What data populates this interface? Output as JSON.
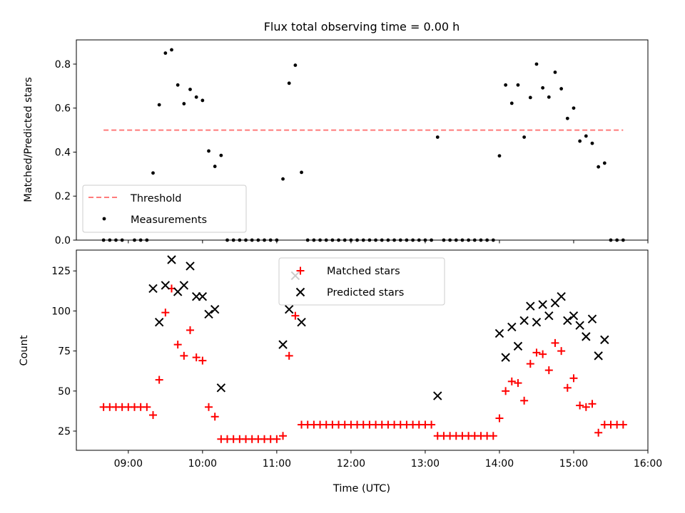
{
  "figure": {
    "title": "Flux total observing time = 0.00 h"
  },
  "chart_data": [
    {
      "type": "scatter",
      "panel": "top",
      "ylabel": "Matched/Predicted stars",
      "xlabel": "",
      "xlim": [
        "08:18",
        "16:00"
      ],
      "ylim": [
        0,
        0.91
      ],
      "yticks": [
        "0.0",
        "0.2",
        "0.4",
        "0.6",
        "0.8"
      ],
      "legend_position": "lower-left",
      "threshold": {
        "name": "Threshold",
        "value": 0.5,
        "x_range": [
          "08:40",
          "15:40"
        ],
        "color": "#ff7b7b"
      },
      "series": [
        {
          "name": "Measurements",
          "color": "#000000",
          "points": [
            [
              "08:40",
              0
            ],
            [
              "08:45",
              0
            ],
            [
              "08:50",
              0
            ],
            [
              "08:55",
              0
            ],
            [
              "09:05",
              0
            ],
            [
              "09:10",
              0
            ],
            [
              "09:15",
              0
            ],
            [
              "09:20",
              0.305
            ],
            [
              "09:25",
              0.615
            ],
            [
              "09:30",
              0.85
            ],
            [
              "09:35",
              0.865
            ],
            [
              "09:40",
              0.705
            ],
            [
              "09:45",
              0.62
            ],
            [
              "09:50",
              0.685
            ],
            [
              "09:55",
              0.65
            ],
            [
              "10:00",
              0.635
            ],
            [
              "10:05",
              0.405
            ],
            [
              "10:10",
              0.335
            ],
            [
              "10:15",
              0.385
            ],
            [
              "10:20",
              0
            ],
            [
              "10:25",
              0
            ],
            [
              "10:30",
              0
            ],
            [
              "10:35",
              0
            ],
            [
              "10:40",
              0
            ],
            [
              "10:45",
              0
            ],
            [
              "10:50",
              0
            ],
            [
              "10:55",
              0
            ],
            [
              "11:00",
              0
            ],
            [
              "11:05",
              0.278
            ],
            [
              "11:10",
              0.713
            ],
            [
              "11:15",
              0.795
            ],
            [
              "11:20",
              0.308
            ],
            [
              "11:25",
              0
            ],
            [
              "11:30",
              0
            ],
            [
              "11:35",
              0
            ],
            [
              "11:40",
              0
            ],
            [
              "11:45",
              0
            ],
            [
              "11:50",
              0
            ],
            [
              "11:55",
              0
            ],
            [
              "12:00",
              0
            ],
            [
              "12:05",
              0
            ],
            [
              "12:10",
              0
            ],
            [
              "12:15",
              0
            ],
            [
              "12:20",
              0
            ],
            [
              "12:25",
              0
            ],
            [
              "12:30",
              0
            ],
            [
              "12:35",
              0
            ],
            [
              "12:40",
              0
            ],
            [
              "12:45",
              0
            ],
            [
              "12:50",
              0
            ],
            [
              "12:55",
              0
            ],
            [
              "13:00",
              0
            ],
            [
              "13:05",
              0
            ],
            [
              "13:10",
              0.468
            ],
            [
              "13:15",
              0
            ],
            [
              "13:20",
              0
            ],
            [
              "13:25",
              0
            ],
            [
              "13:30",
              0
            ],
            [
              "13:35",
              0
            ],
            [
              "13:40",
              0
            ],
            [
              "13:45",
              0
            ],
            [
              "13:50",
              0
            ],
            [
              "13:55",
              0
            ],
            [
              "14:00",
              0.383
            ],
            [
              "14:05",
              0.705
            ],
            [
              "14:10",
              0.622
            ],
            [
              "14:15",
              0.705
            ],
            [
              "14:20",
              0.468
            ],
            [
              "14:25",
              0.648
            ],
            [
              "14:30",
              0.8
            ],
            [
              "14:35",
              0.692
            ],
            [
              "14:40",
              0.65
            ],
            [
              "14:45",
              0.763
            ],
            [
              "14:50",
              0.688
            ],
            [
              "14:55",
              0.553
            ],
            [
              "15:00",
              0.6
            ],
            [
              "15:05",
              0.45
            ],
            [
              "15:10",
              0.473
            ],
            [
              "15:15",
              0.44
            ],
            [
              "15:20",
              0.333
            ],
            [
              "15:25",
              0.35
            ],
            [
              "15:30",
              0
            ],
            [
              "15:35",
              0
            ],
            [
              "15:40",
              0
            ]
          ]
        }
      ]
    },
    {
      "type": "scatter",
      "panel": "bottom",
      "xlabel": "Time (UTC)",
      "ylabel": "Count",
      "xlim": [
        "08:18",
        "16:00"
      ],
      "ylim": [
        13,
        138
      ],
      "xticks": [
        "09:00",
        "10:00",
        "11:00",
        "12:00",
        "13:00",
        "14:00",
        "15:00",
        "16:00"
      ],
      "yticks": [
        "25",
        "50",
        "75",
        "100",
        "125"
      ],
      "legend_position": "upper-center",
      "series": [
        {
          "name": "Matched stars",
          "marker": "plus",
          "color": "#ff0000",
          "points": [
            [
              "08:40",
              40
            ],
            [
              "08:45",
              40
            ],
            [
              "08:50",
              40
            ],
            [
              "08:55",
              40
            ],
            [
              "09:00",
              40
            ],
            [
              "09:05",
              40
            ],
            [
              "09:10",
              40
            ],
            [
              "09:15",
              40
            ],
            [
              "09:20",
              35
            ],
            [
              "09:25",
              57
            ],
            [
              "09:30",
              99
            ],
            [
              "09:35",
              114
            ],
            [
              "09:40",
              79
            ],
            [
              "09:45",
              72
            ],
            [
              "09:50",
              88
            ],
            [
              "09:55",
              71
            ],
            [
              "10:00",
              69
            ],
            [
              "10:05",
              40
            ],
            [
              "10:10",
              34
            ],
            [
              "10:15",
              20
            ],
            [
              "10:20",
              20
            ],
            [
              "10:25",
              20
            ],
            [
              "10:30",
              20
            ],
            [
              "10:35",
              20
            ],
            [
              "10:40",
              20
            ],
            [
              "10:45",
              20
            ],
            [
              "10:50",
              20
            ],
            [
              "10:55",
              20
            ],
            [
              "11:00",
              20
            ],
            [
              "11:05",
              22
            ],
            [
              "11:10",
              72
            ],
            [
              "11:15",
              97
            ],
            [
              "11:20",
              29
            ],
            [
              "11:25",
              29
            ],
            [
              "11:30",
              29
            ],
            [
              "11:35",
              29
            ],
            [
              "11:40",
              29
            ],
            [
              "11:45",
              29
            ],
            [
              "11:50",
              29
            ],
            [
              "11:55",
              29
            ],
            [
              "12:00",
              29
            ],
            [
              "12:05",
              29
            ],
            [
              "12:10",
              29
            ],
            [
              "12:15",
              29
            ],
            [
              "12:20",
              29
            ],
            [
              "12:25",
              29
            ],
            [
              "12:30",
              29
            ],
            [
              "12:35",
              29
            ],
            [
              "12:40",
              29
            ],
            [
              "12:45",
              29
            ],
            [
              "12:50",
              29
            ],
            [
              "12:55",
              29
            ],
            [
              "13:00",
              29
            ],
            [
              "13:05",
              29
            ],
            [
              "13:10",
              22
            ],
            [
              "13:15",
              22
            ],
            [
              "13:20",
              22
            ],
            [
              "13:25",
              22
            ],
            [
              "13:30",
              22
            ],
            [
              "13:35",
              22
            ],
            [
              "13:40",
              22
            ],
            [
              "13:45",
              22
            ],
            [
              "13:50",
              22
            ],
            [
              "13:55",
              22
            ],
            [
              "14:00",
              33
            ],
            [
              "14:05",
              50
            ],
            [
              "14:10",
              56
            ],
            [
              "14:15",
              55
            ],
            [
              "14:20",
              44
            ],
            [
              "14:25",
              67
            ],
            [
              "14:30",
              74
            ],
            [
              "14:35",
              73
            ],
            [
              "14:40",
              63
            ],
            [
              "14:45",
              80
            ],
            [
              "14:50",
              75
            ],
            [
              "14:55",
              52
            ],
            [
              "15:00",
              58
            ],
            [
              "15:05",
              41
            ],
            [
              "15:10",
              40
            ],
            [
              "15:15",
              42
            ],
            [
              "15:20",
              24
            ],
            [
              "15:25",
              29
            ],
            [
              "15:30",
              29
            ],
            [
              "15:35",
              29
            ],
            [
              "15:40",
              29
            ]
          ]
        },
        {
          "name": "Predicted stars",
          "marker": "x",
          "color": "#000000",
          "points": [
            [
              "09:20",
              114
            ],
            [
              "09:25",
              93
            ],
            [
              "09:30",
              116
            ],
            [
              "09:35",
              132
            ],
            [
              "09:40",
              112
            ],
            [
              "09:45",
              116
            ],
            [
              "09:50",
              128
            ],
            [
              "09:55",
              109
            ],
            [
              "10:00",
              109
            ],
            [
              "10:05",
              98
            ],
            [
              "10:10",
              101
            ],
            [
              "10:15",
              52
            ],
            [
              "11:05",
              79
            ],
            [
              "11:10",
              101
            ],
            [
              "11:15",
              122
            ],
            [
              "11:20",
              93
            ],
            [
              "13:10",
              47
            ],
            [
              "14:00",
              86
            ],
            [
              "14:05",
              71
            ],
            [
              "14:10",
              90
            ],
            [
              "14:15",
              78
            ],
            [
              "14:20",
              94
            ],
            [
              "14:25",
              103
            ],
            [
              "14:30",
              93
            ],
            [
              "14:35",
              104
            ],
            [
              "14:40",
              97
            ],
            [
              "14:45",
              105
            ],
            [
              "14:50",
              109
            ],
            [
              "14:55",
              94
            ],
            [
              "15:00",
              97
            ],
            [
              "15:05",
              91
            ],
            [
              "15:10",
              84
            ],
            [
              "15:15",
              95
            ],
            [
              "15:20",
              72
            ],
            [
              "15:25",
              82
            ]
          ]
        }
      ]
    }
  ]
}
